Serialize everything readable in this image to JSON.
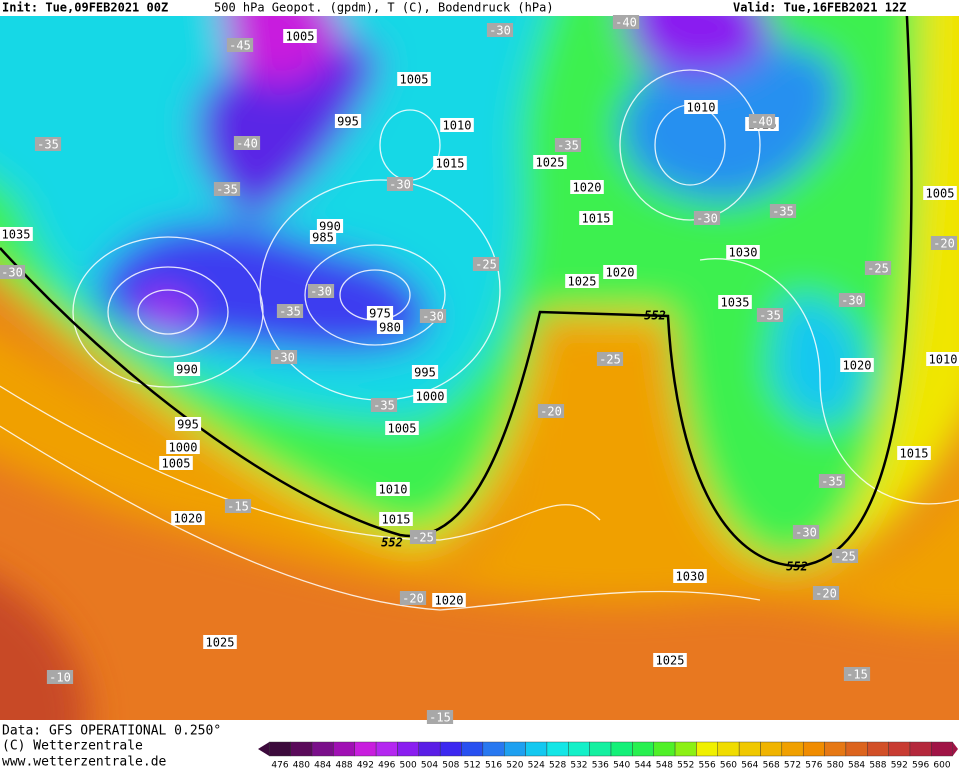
{
  "header": {
    "left": "Init: Tue,09FEB2021 00Z",
    "center": "500 hPa Geopot. (gpdm), T (C), Bodendruck (hPa)",
    "right": "Valid: Tue,16FEB2021 12Z"
  },
  "footer": {
    "source": "Data: GFS OPERATIONAL 0.250°",
    "copyright": "(C) Wetterzentrale",
    "url": "www.wetterzentrale.de"
  },
  "colorbar": {
    "labels": [
      476,
      480,
      484,
      488,
      492,
      496,
      500,
      504,
      508,
      512,
      516,
      520,
      524,
      528,
      532,
      536,
      540,
      544,
      548,
      552,
      556,
      560,
      564,
      568,
      572,
      576,
      580,
      584,
      588,
      592,
      596,
      600
    ],
    "colors": [
      "#3c0a3c",
      "#5a0a5a",
      "#7a0f8a",
      "#a010b4",
      "#c81ede",
      "#b428f0",
      "#8a1ef0",
      "#5a1ee6",
      "#3c28f0",
      "#2850f0",
      "#2878f0",
      "#1ea0f0",
      "#14c8f0",
      "#14e6e6",
      "#14f0c8",
      "#14f0a0",
      "#14f078",
      "#28f050",
      "#50f028",
      "#8cf014",
      "#f0f000",
      "#f0dc00",
      "#f0c800",
      "#f0b400",
      "#f0a000",
      "#f08c00",
      "#e67814",
      "#dc641e",
      "#d25028",
      "#c83c32",
      "#b4283c",
      "#a01446"
    ]
  },
  "map": {
    "isobar_labels": [
      1005,
      1005,
      995,
      1010,
      1015,
      1025,
      1020,
      1015,
      1010,
      1025,
      1035,
      990,
      985,
      1020,
      1025,
      1030,
      1035,
      975,
      980,
      990,
      995,
      1000,
      1005,
      995,
      1000,
      1005,
      1010,
      1015,
      1020,
      1020,
      1025,
      1030,
      1025,
      1020,
      1015,
      1010,
      1005
    ],
    "isotherm_labels": [
      -45,
      -40,
      -30,
      -40,
      -35,
      -35,
      -35,
      -30,
      -30,
      -35,
      -25,
      -30,
      -35,
      -30,
      -30,
      -25,
      -35,
      -20,
      -35,
      -30,
      -25,
      -20,
      -35,
      -30,
      -25,
      -20,
      -15,
      -25,
      -20,
      -15,
      -10,
      -15,
      -40,
      -30
    ],
    "height_labels": [
      552,
      552,
      552
    ]
  }
}
